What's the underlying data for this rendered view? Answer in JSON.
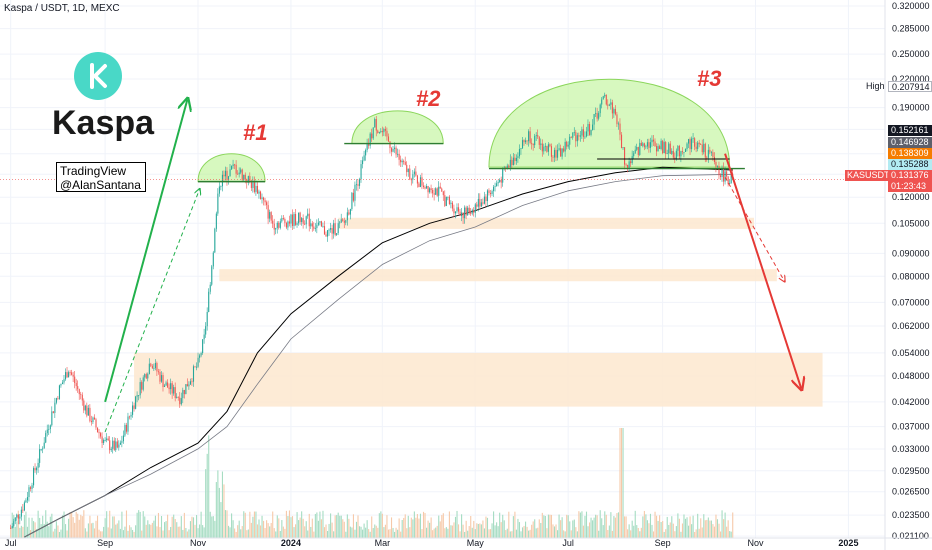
{
  "header": {
    "symbol_line": "Kaspa / USDT, 1D, MEXC"
  },
  "logo": {
    "text": "Kaspa",
    "icon": "kaspa-k-icon",
    "color": "#49D8C7"
  },
  "watermark": {
    "line1": "TradingView",
    "line2": "@AlanSantana"
  },
  "pattern_labels": [
    "#1",
    "#2",
    "#3"
  ],
  "price_tags": {
    "high_label": "High",
    "high_value": "0.207914",
    "tag_1": "0.152161",
    "tag_2": "0.146928",
    "tag_3": "0.138309",
    "tag_4": "0.135288",
    "symbol": "KASUSDT",
    "last_price": "0.131376",
    "countdown": "01:23:43"
  },
  "colors": {
    "up": "#26a69a",
    "down": "#ef5350",
    "arrow_up": "#22b14c",
    "arrow_down": "#e53935",
    "zone": "#fde8cf",
    "dome": "#b7f28a"
  },
  "chart_data": {
    "type": "candlestick",
    "xlabel": "",
    "ylabel": "",
    "x_ticks": [
      "Jul",
      "Sep",
      "Nov",
      "2024",
      "Mar",
      "May",
      "Jul",
      "Sep",
      "Nov",
      "2025"
    ],
    "y_ticks": [
      "0.320000",
      "0.285000",
      "0.250000",
      "0.220000",
      "0.190000",
      "0.170000",
      "0.150000",
      "0.135000",
      "0.120000",
      "0.105000",
      "0.090000",
      "0.080000",
      "0.070000",
      "0.062000",
      "0.054000",
      "0.048000",
      "0.042000",
      "0.037000",
      "0.033000",
      "0.029500",
      "0.026500",
      "0.023500",
      "0.021100"
    ],
    "y_scale": "log",
    "ylim": [
      0.0209,
      0.33
    ],
    "price_path": [
      [
        "2023-07-01",
        0.022
      ],
      [
        "2023-07-10",
        0.025
      ],
      [
        "2023-07-20",
        0.032
      ],
      [
        "2023-08-01",
        0.044
      ],
      [
        "2023-08-08",
        0.05
      ],
      [
        "2023-08-20",
        0.04
      ],
      [
        "2023-09-01",
        0.034
      ],
      [
        "2023-09-10",
        0.033
      ],
      [
        "2023-09-20",
        0.042
      ],
      [
        "2023-10-01",
        0.052
      ],
      [
        "2023-10-10",
        0.046
      ],
      [
        "2023-10-20",
        0.043
      ],
      [
        "2023-11-01",
        0.051
      ],
      [
        "2023-11-05",
        0.058
      ],
      [
        "2023-11-10",
        0.085
      ],
      [
        "2023-11-15",
        0.13
      ],
      [
        "2023-11-25",
        0.14
      ],
      [
        "2023-12-10",
        0.125
      ],
      [
        "2023-12-20",
        0.105
      ],
      [
        "2024-01-10",
        0.108
      ],
      [
        "2024-01-25",
        0.1
      ],
      [
        "2024-02-05",
        0.105
      ],
      [
        "2024-02-15",
        0.135
      ],
      [
        "2024-02-25",
        0.175
      ],
      [
        "2024-03-05",
        0.16
      ],
      [
        "2024-03-15",
        0.14
      ],
      [
        "2024-03-25",
        0.13
      ],
      [
        "2024-04-05",
        0.125
      ],
      [
        "2024-04-15",
        0.115
      ],
      [
        "2024-04-25",
        0.11
      ],
      [
        "2024-05-05",
        0.118
      ],
      [
        "2024-05-15",
        0.128
      ],
      [
        "2024-05-25",
        0.145
      ],
      [
        "2024-06-05",
        0.165
      ],
      [
        "2024-06-15",
        0.155
      ],
      [
        "2024-06-25",
        0.15
      ],
      [
        "2024-07-05",
        0.165
      ],
      [
        "2024-07-15",
        0.17
      ],
      [
        "2024-07-25",
        0.2
      ],
      [
        "2024-08-01",
        0.185
      ],
      [
        "2024-08-08",
        0.14
      ],
      [
        "2024-08-20",
        0.16
      ],
      [
        "2024-09-01",
        0.155
      ],
      [
        "2024-09-10",
        0.15
      ],
      [
        "2024-09-20",
        0.16
      ],
      [
        "2024-10-01",
        0.15
      ],
      [
        "2024-10-10",
        0.135
      ],
      [
        "2024-10-17",
        0.131
      ]
    ],
    "sma_long": [
      [
        "2023-07-10",
        0.021
      ],
      [
        "2023-08-01",
        0.023
      ],
      [
        "2023-09-01",
        0.026
      ],
      [
        "2023-10-01",
        0.03
      ],
      [
        "2023-11-01",
        0.034
      ],
      [
        "2023-11-20",
        0.04
      ],
      [
        "2023-12-10",
        0.054
      ],
      [
        "2024-01-01",
        0.066
      ],
      [
        "2024-02-01",
        0.08
      ],
      [
        "2024-03-01",
        0.095
      ],
      [
        "2024-04-01",
        0.105
      ],
      [
        "2024-05-01",
        0.112
      ],
      [
        "2024-06-01",
        0.122
      ],
      [
        "2024-07-01",
        0.13
      ],
      [
        "2024-08-01",
        0.136
      ],
      [
        "2024-09-01",
        0.14
      ],
      [
        "2024-10-17",
        0.138
      ]
    ],
    "sma_mid": [
      [
        "2023-07-10",
        0.021
      ],
      [
        "2023-08-01",
        0.023
      ],
      [
        "2023-09-01",
        0.026
      ],
      [
        "2023-10-01",
        0.029
      ],
      [
        "2023-11-01",
        0.033
      ],
      [
        "2023-11-20",
        0.037
      ],
      [
        "2023-12-10",
        0.046
      ],
      [
        "2024-01-01",
        0.058
      ],
      [
        "2024-02-01",
        0.071
      ],
      [
        "2024-03-01",
        0.085
      ],
      [
        "2024-04-01",
        0.096
      ],
      [
        "2024-05-01",
        0.103
      ],
      [
        "2024-06-01",
        0.115
      ],
      [
        "2024-07-01",
        0.124
      ],
      [
        "2024-08-01",
        0.13
      ],
      [
        "2024-09-01",
        0.134
      ],
      [
        "2024-10-17",
        0.135
      ]
    ],
    "zones": [
      {
        "from": "2024-02-01",
        "to": "2024-10-31",
        "low": 0.102,
        "high": 0.108
      },
      {
        "from": "2023-11-15",
        "to": "2024-11-15",
        "low": 0.078,
        "high": 0.083
      },
      {
        "from": "2023-09-20",
        "to": "2024-12-15",
        "low": 0.041,
        "high": 0.054
      }
    ],
    "domes": [
      {
        "from": "2023-11-01",
        "to": "2023-12-15",
        "base": 0.13,
        "top": 0.15
      },
      {
        "from": "2024-02-10",
        "to": "2024-04-10",
        "base": 0.158,
        "top": 0.187
      },
      {
        "from": "2024-05-10",
        "to": "2024-10-15",
        "base": 0.14,
        "top": 0.22
      }
    ],
    "lines": {
      "neck_1": {
        "from": "2023-11-01",
        "to": "2023-12-15",
        "price": 0.13
      },
      "neck_2": {
        "from": "2024-02-05",
        "to": "2024-04-10",
        "price": 0.158
      },
      "neck_3": {
        "from": "2024-05-10",
        "to": "2024-10-25",
        "price": 0.139
      },
      "black_resistance": {
        "from": "2024-07-20",
        "to": "2024-10-15",
        "price": 0.146
      }
    },
    "arrows": {
      "green_up": {
        "from": [
          "2023-09-01",
          0.042
        ],
        "to": [
          "2023-10-25",
          0.198
        ]
      },
      "green_dashed": {
        "from": [
          "2023-09-01",
          0.036
        ],
        "to": [
          "2023-11-02",
          0.125
        ]
      },
      "red_down": {
        "from": [
          "2024-10-12",
          0.15
        ],
        "to": [
          "2024-12-01",
          0.045
        ]
      },
      "red_dashed": {
        "from": [
          "2024-10-12",
          0.133
        ],
        "to": [
          "2024-11-20",
          0.078
        ]
      }
    }
  }
}
